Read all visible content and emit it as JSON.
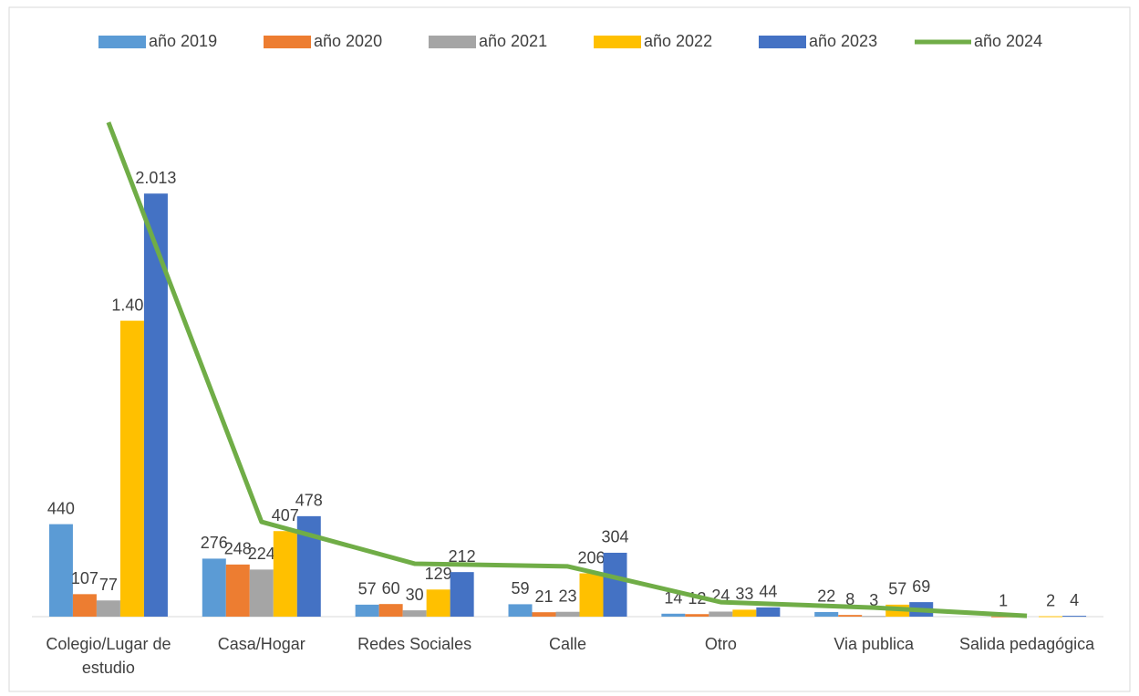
{
  "chart_data": {
    "type": "bar_line",
    "categories": [
      "Colegio/Lugar de estudio",
      "Casa/Hogar",
      "Redes Sociales",
      "Calle",
      "Otro",
      "Via publica",
      "Salida pedagógica"
    ],
    "series": [
      {
        "name": "año 2019",
        "color": "#5b9bd5",
        "type": "bar",
        "values": [
          440,
          276,
          57,
          59,
          14,
          22,
          null
        ],
        "value_labels": [
          "440",
          "276",
          "57",
          "59",
          "14",
          "22",
          null
        ]
      },
      {
        "name": "año 2020",
        "color": "#ed7d31",
        "type": "bar",
        "values": [
          107,
          248,
          60,
          21,
          12,
          8,
          1
        ],
        "value_labels": [
          "107",
          "248",
          "60",
          "21",
          "12",
          "8",
          "1"
        ]
      },
      {
        "name": "año 2021",
        "color": "#a5a5a5",
        "type": "bar",
        "values": [
          77,
          224,
          30,
          23,
          24,
          3,
          null
        ],
        "value_labels": [
          "77",
          "224",
          "30",
          "23",
          "24",
          "3",
          null
        ]
      },
      {
        "name": "año 2022",
        "color": "#ffc000",
        "type": "bar",
        "values": [
          1408,
          407,
          129,
          206,
          33,
          57,
          2
        ],
        "value_labels": [
          "1.408",
          "407",
          "129",
          "206",
          "33",
          "57",
          "2"
        ]
      },
      {
        "name": "año 2023",
        "color": "#4472c4",
        "type": "bar",
        "values": [
          2013,
          478,
          212,
          304,
          44,
          69,
          4
        ],
        "value_labels": [
          "2.013",
          "478",
          "212",
          "304",
          "44",
          "69",
          "4"
        ]
      },
      {
        "name": "año 2024",
        "color": "#70ad47",
        "type": "line",
        "values": [
          2352,
          451,
          252,
          239,
          69,
          43,
          4
        ]
      }
    ],
    "ylim": [
      0,
      2500
    ]
  }
}
